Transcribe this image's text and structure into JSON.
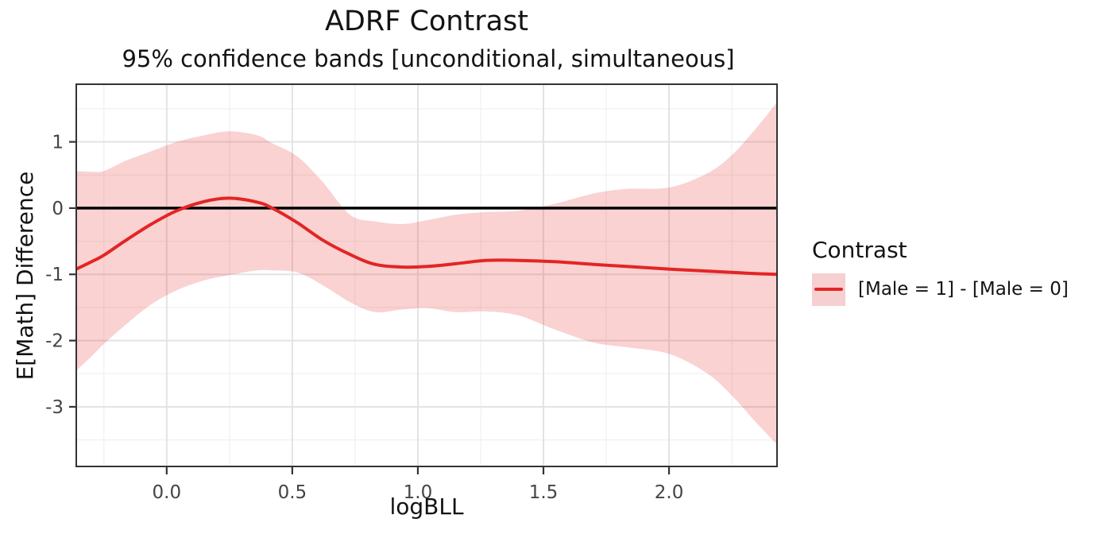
{
  "header": {
    "title": "ADRF Contrast",
    "subtitle": "95% confidence bands [unconditional, simultaneous]"
  },
  "axes": {
    "x_label": "logBLL",
    "y_label": "E[Math] Difference"
  },
  "legend": {
    "title": "Contrast",
    "items": [
      {
        "label": "[Male = 1] - [Male = 0]"
      }
    ]
  },
  "colors": {
    "line": "#e32525",
    "band_fill": "#e22a25",
    "band_opacity": 0.21,
    "legend_swatch": "#f6cfd1",
    "zero_line": "#000000",
    "grid_major": "#e3e3e3",
    "grid_minor": "#f0f0f0",
    "panel_border": "#333333",
    "tick_mark": "#333333",
    "tick_label": "#444444",
    "text": "#131313"
  },
  "chart_data": {
    "type": "line",
    "title": "ADRF Contrast",
    "subtitle": "95% confidence bands [unconditional, simultaneous]",
    "xlabel": "logBLL",
    "ylabel": "E[Math] Difference",
    "x_domain": [
      -0.36,
      2.43
    ],
    "y_domain": [
      -3.9,
      1.87
    ],
    "x_ticks": {
      "values": [
        0.0,
        0.5,
        1.0,
        1.5,
        2.0
      ],
      "labels": [
        "0.0",
        "0.5",
        "1.0",
        "1.5",
        "2.0"
      ]
    },
    "y_ticks": {
      "values": [
        1,
        0,
        -1,
        -2,
        -3
      ],
      "labels": [
        "1",
        "0",
        "-1",
        "-2",
        "-3"
      ]
    },
    "x_minor": [
      -0.25,
      0.25,
      0.75,
      1.25,
      1.75,
      2.25
    ],
    "y_minor": [
      -3.5,
      -2.5,
      -1.5,
      -0.5,
      0.5,
      1.5
    ],
    "grid": true,
    "legend_position": "right",
    "reference_line_y": 0,
    "series": [
      {
        "name": "[Male = 1] - [Male = 0]",
        "x": [
          -0.36,
          -0.3,
          -0.25,
          -0.16,
          -0.06,
          0.04,
          0.15,
          0.25,
          0.36,
          0.42,
          0.52,
          0.62,
          0.73,
          0.83,
          0.94,
          1.04,
          1.15,
          1.27,
          1.4,
          1.55,
          1.7,
          1.83,
          2.0,
          2.15,
          2.25,
          2.35,
          2.43
        ],
        "mean": [
          -0.92,
          -0.81,
          -0.71,
          -0.48,
          -0.24,
          -0.04,
          0.1,
          0.15,
          0.09,
          0.0,
          -0.22,
          -0.48,
          -0.7,
          -0.85,
          -0.89,
          -0.88,
          -0.84,
          -0.79,
          -0.79,
          -0.81,
          -0.85,
          -0.88,
          -0.92,
          -0.95,
          -0.97,
          -0.99,
          -1.0
        ],
        "upper": [
          0.56,
          0.55,
          0.56,
          0.72,
          0.86,
          1.0,
          1.1,
          1.16,
          1.1,
          0.98,
          0.78,
          0.4,
          -0.1,
          -0.2,
          -0.24,
          -0.18,
          -0.1,
          -0.06,
          -0.04,
          0.07,
          0.22,
          0.29,
          0.31,
          0.52,
          0.8,
          1.22,
          1.6
        ],
        "lower": [
          -2.45,
          -2.24,
          -2.05,
          -1.75,
          -1.45,
          -1.24,
          -1.09,
          -1.01,
          -0.94,
          -0.94,
          -0.97,
          -1.16,
          -1.42,
          -1.57,
          -1.53,
          -1.51,
          -1.57,
          -1.56,
          -1.62,
          -1.84,
          -2.03,
          -2.1,
          -2.2,
          -2.49,
          -2.83,
          -3.25,
          -3.57
        ]
      }
    ]
  }
}
